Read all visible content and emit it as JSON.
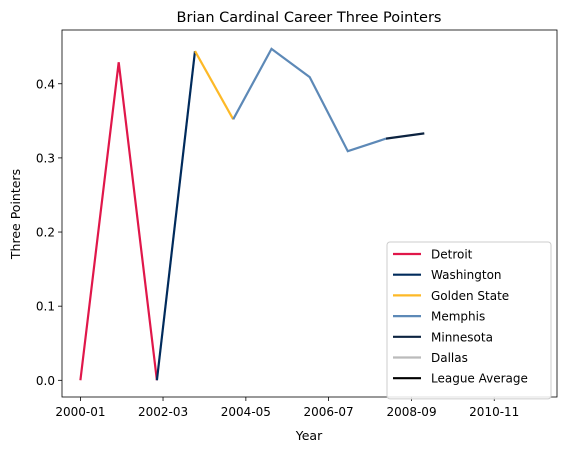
{
  "chart_data": {
    "type": "line",
    "title": "Brian Cardinal Career Three Pointers",
    "xlabel": "Year",
    "ylabel": "Three Pointers",
    "xlim": [
      "1999-07-09",
      "2012-06-23"
    ],
    "ylim": [
      -0.0225,
      0.4725
    ],
    "x_ticks": [
      {
        "date": "2000-01-01",
        "label": "2000-01"
      },
      {
        "date": "2002-03-01",
        "label": "2002-03"
      },
      {
        "date": "2004-05-01",
        "label": "2004-05"
      },
      {
        "date": "2006-07-01",
        "label": "2006-07"
      },
      {
        "date": "2008-09-01",
        "label": "2008-09"
      },
      {
        "date": "2010-11-01",
        "label": "2010-11"
      }
    ],
    "y_ticks": [
      0.0,
      0.1,
      0.2,
      0.3,
      0.4
    ],
    "y_tick_labels": [
      "0.0",
      "0.1",
      "0.2",
      "0.3",
      "0.4"
    ],
    "legend_position": "lower-right",
    "grid": false,
    "series": [
      {
        "name": "Detroit",
        "color": "#E0174A",
        "points": [
          [
            "2000-01-01",
            0.0
          ],
          [
            "2001-01-01",
            0.429
          ],
          [
            "2002-01-01",
            0.0
          ]
        ]
      },
      {
        "name": "Washington",
        "color": "#002B5C",
        "points": [
          [
            "2002-01-01",
            0.0
          ],
          [
            "2003-01-01",
            0.444
          ]
        ]
      },
      {
        "name": "Golden State",
        "color": "#FDB927",
        "points": [
          [
            "2003-01-01",
            0.444
          ],
          [
            "2004-01-01",
            0.352
          ]
        ]
      },
      {
        "name": "Memphis",
        "color": "#5D89B7",
        "points": [
          [
            "2004-01-01",
            0.352
          ],
          [
            "2005-01-01",
            0.447
          ],
          [
            "2006-01-01",
            0.409
          ],
          [
            "2007-01-01",
            0.309
          ],
          [
            "2008-01-01",
            0.326
          ]
        ]
      },
      {
        "name": "Minnesota",
        "color": "#0C2340",
        "points": [
          [
            "2008-01-01",
            0.326
          ],
          [
            "2009-01-01",
            0.333
          ]
        ]
      },
      {
        "name": "Dallas",
        "color": "#BBBBBB",
        "points": []
      },
      {
        "name": "League Average",
        "color": "#000000",
        "points": []
      }
    ]
  }
}
